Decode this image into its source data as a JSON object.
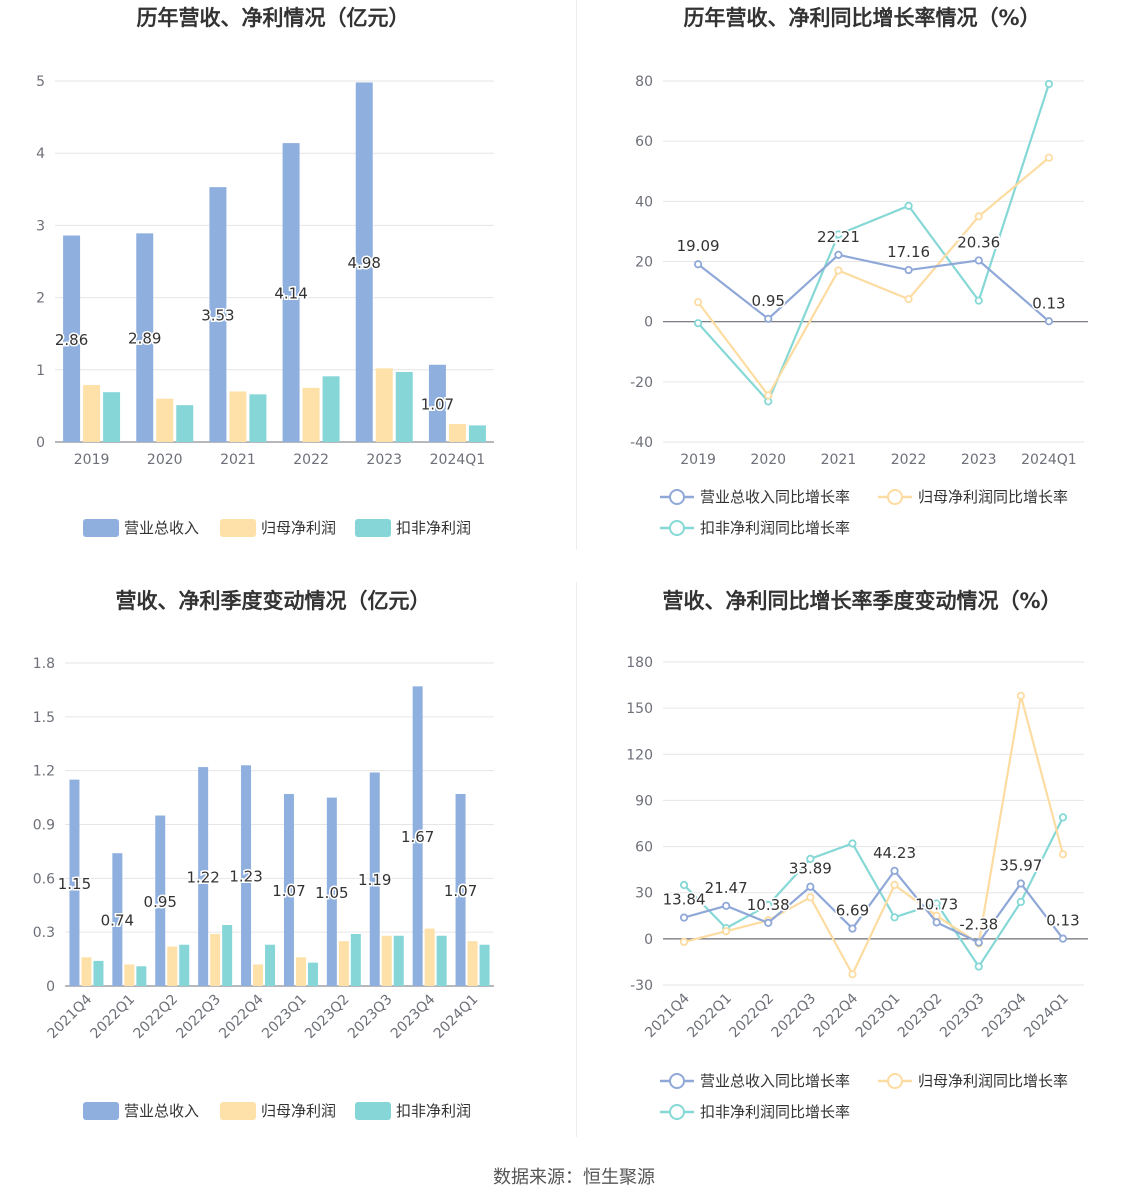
{
  "source_text": "数据来源：恒生聚源",
  "colors": {
    "revenue_bar": "#8fb0de",
    "profit_bar": "#fde1a8",
    "deducted_bar": "#86d6d8",
    "revenue_line": "#8fa8d8",
    "profit_line": "#fddca2",
    "deducted_line": "#86d8d6",
    "grid": "#e6e6e6",
    "axis": "#6e7079"
  },
  "chart_data": [
    {
      "type": "bar",
      "title": "历年营收、净利情况（亿元）",
      "categories": [
        "2019",
        "2020",
        "2021",
        "2022",
        "2023",
        "2024Q1"
      ],
      "ylim": [
        0,
        5
      ],
      "yticks": [
        "0",
        "1",
        "2",
        "3",
        "4",
        "5"
      ],
      "yticks_values": [
        0,
        1,
        2,
        3,
        4,
        5
      ],
      "series": [
        {
          "name": "营业总收入",
          "values": [
            2.86,
            2.89,
            3.53,
            4.14,
            4.98,
            1.07
          ],
          "labels": [
            "2.86",
            "2.89",
            "3.53",
            "4.14",
            "4.98",
            "1.07"
          ]
        },
        {
          "name": "归母净利润",
          "values": [
            0.79,
            0.6,
            0.7,
            0.75,
            1.02,
            0.25
          ]
        },
        {
          "name": "扣非净利润",
          "values": [
            0.69,
            0.51,
            0.66,
            0.91,
            0.97,
            0.23
          ]
        }
      ],
      "legend_position": "bottom",
      "grid": true
    },
    {
      "type": "line",
      "title": "历年营收、净利同比增长率情况（%）",
      "categories": [
        "2019",
        "2020",
        "2021",
        "2022",
        "2023",
        "2024Q1"
      ],
      "ylim": [
        -40,
        80
      ],
      "yticks": [
        "-40",
        "-20",
        "0",
        "20",
        "40",
        "60",
        "80"
      ],
      "yticks_values": [
        -40,
        -20,
        0,
        20,
        40,
        60,
        80
      ],
      "series": [
        {
          "name": "营业总收入同比增长率",
          "values": [
            19.09,
            0.95,
            22.21,
            17.16,
            20.36,
            0.13
          ],
          "labels": [
            "19.09",
            "0.95",
            "22.21",
            "17.16",
            "20.36",
            "0.13"
          ]
        },
        {
          "name": "归母净利润同比增长率",
          "values": [
            6.5,
            -24.5,
            17.0,
            7.5,
            35.0,
            54.5
          ]
        },
        {
          "name": "扣非净利润同比增长率",
          "values": [
            -0.5,
            -26.5,
            29.0,
            38.5,
            7.0,
            79.0
          ]
        }
      ],
      "legend_position": "bottom",
      "grid": true
    },
    {
      "type": "bar",
      "title": "营收、净利季度变动情况（亿元）",
      "categories": [
        "2021Q4",
        "2022Q1",
        "2022Q2",
        "2022Q3",
        "2022Q4",
        "2023Q1",
        "2023Q2",
        "2023Q3",
        "2023Q4",
        "2024Q1"
      ],
      "ylim": [
        0,
        1.8
      ],
      "yticks": [
        "0",
        "0.3",
        "0.6",
        "0.9",
        "1.2",
        "1.5",
        "1.8"
      ],
      "yticks_values": [
        0,
        0.3,
        0.6,
        0.9,
        1.2,
        1.5,
        1.8
      ],
      "series": [
        {
          "name": "营业总收入",
          "values": [
            1.15,
            0.74,
            0.95,
            1.22,
            1.23,
            1.07,
            1.05,
            1.19,
            1.67,
            1.07
          ],
          "labels": [
            "1.15",
            "0.74",
            "0.95",
            "1.22",
            "1.23",
            "1.07",
            "1.05",
            "1.19",
            "1.67",
            "1.07"
          ]
        },
        {
          "name": "归母净利润",
          "values": [
            0.16,
            0.12,
            0.22,
            0.29,
            0.12,
            0.16,
            0.25,
            0.28,
            0.32,
            0.25
          ]
        },
        {
          "name": "扣非净利润",
          "values": [
            0.14,
            0.11,
            0.23,
            0.34,
            0.23,
            0.13,
            0.29,
            0.28,
            0.28,
            0.23
          ]
        }
      ],
      "legend_position": "bottom",
      "grid": true
    },
    {
      "type": "line",
      "title": "营收、净利同比增长率季度变动情况（%）",
      "categories": [
        "2021Q4",
        "2022Q1",
        "2022Q2",
        "2022Q3",
        "2022Q4",
        "2023Q1",
        "2023Q2",
        "2023Q3",
        "2023Q4",
        "2024Q1"
      ],
      "ylim": [
        -30,
        180
      ],
      "yticks": [
        "-30",
        "0",
        "30",
        "60",
        "90",
        "120",
        "150",
        "180"
      ],
      "yticks_values": [
        -30,
        0,
        30,
        60,
        90,
        120,
        150,
        180
      ],
      "series": [
        {
          "name": "营业总收入同比增长率",
          "values": [
            13.84,
            21.47,
            10.38,
            33.89,
            6.69,
            44.23,
            10.73,
            -2.38,
            35.97,
            0.13
          ],
          "labels": [
            "13.84",
            "21.47",
            "10.38",
            "33.89",
            "6.69",
            "44.23",
            "10.73",
            "-2.38",
            "35.97",
            "0.13"
          ]
        },
        {
          "name": "归母净利润同比增长率",
          "values": [
            -2,
            5,
            12,
            27,
            -23,
            35,
            15,
            -3,
            158,
            55
          ]
        },
        {
          "name": "扣非净利润同比增长率",
          "values": [
            35,
            7,
            22,
            52,
            62,
            14,
            23,
            -18,
            24,
            79
          ]
        }
      ],
      "legend_position": "bottom",
      "grid": true
    }
  ]
}
